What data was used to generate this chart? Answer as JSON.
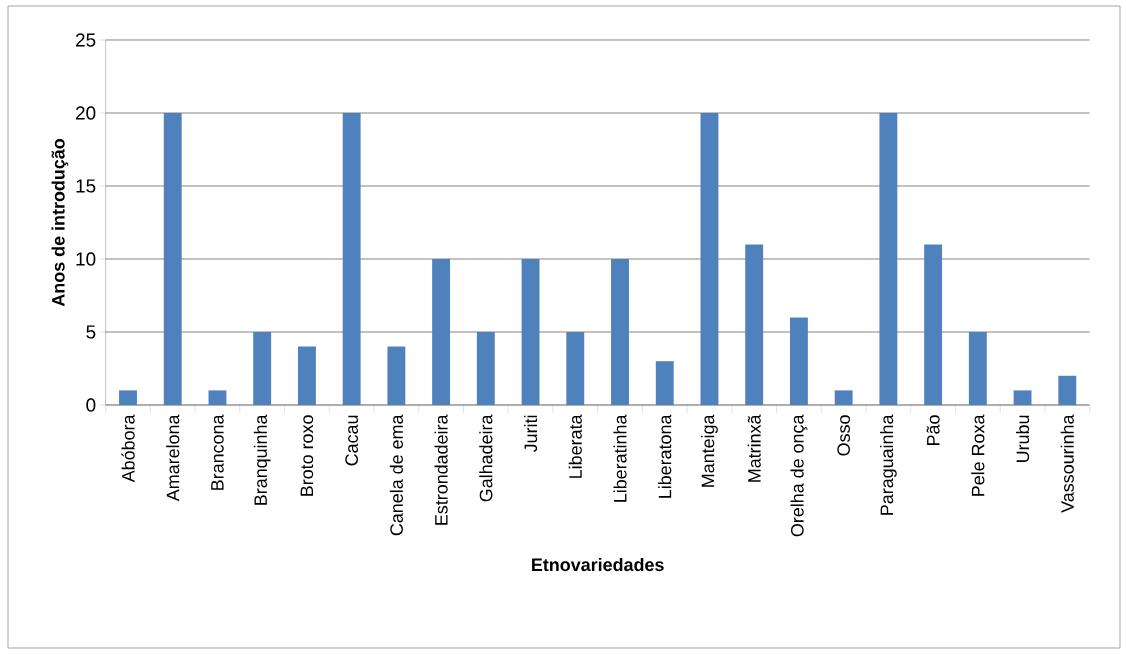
{
  "chart_data": {
    "type": "bar",
    "xlabel": "Etnovariedades",
    "ylabel": "Anos de introdução",
    "categories": [
      "Abóbora",
      "Amarelona",
      "Brancona",
      "Branquinha",
      "Broto roxo",
      "Cacau",
      "Canela de ema",
      "Estrondadeira",
      "Galhadeira",
      "Juriti",
      "Liberata",
      "Liberatinha",
      "Liberatona",
      "Manteiga",
      "Matrinxã",
      "Orelha de onça",
      "Osso",
      "Paraguainha",
      "Pão",
      "Pele Roxa",
      "Urubu",
      "Vassourinha"
    ],
    "values": [
      1,
      20,
      1,
      5,
      4,
      20,
      4,
      10,
      5,
      10,
      5,
      10,
      3,
      20,
      11,
      6,
      1,
      20,
      11,
      5,
      1,
      2
    ],
    "color": "#4f81bd",
    "ylim": [
      0,
      25
    ],
    "yticks": [
      0,
      5,
      10,
      15,
      20,
      25
    ],
    "grid": "y"
  }
}
